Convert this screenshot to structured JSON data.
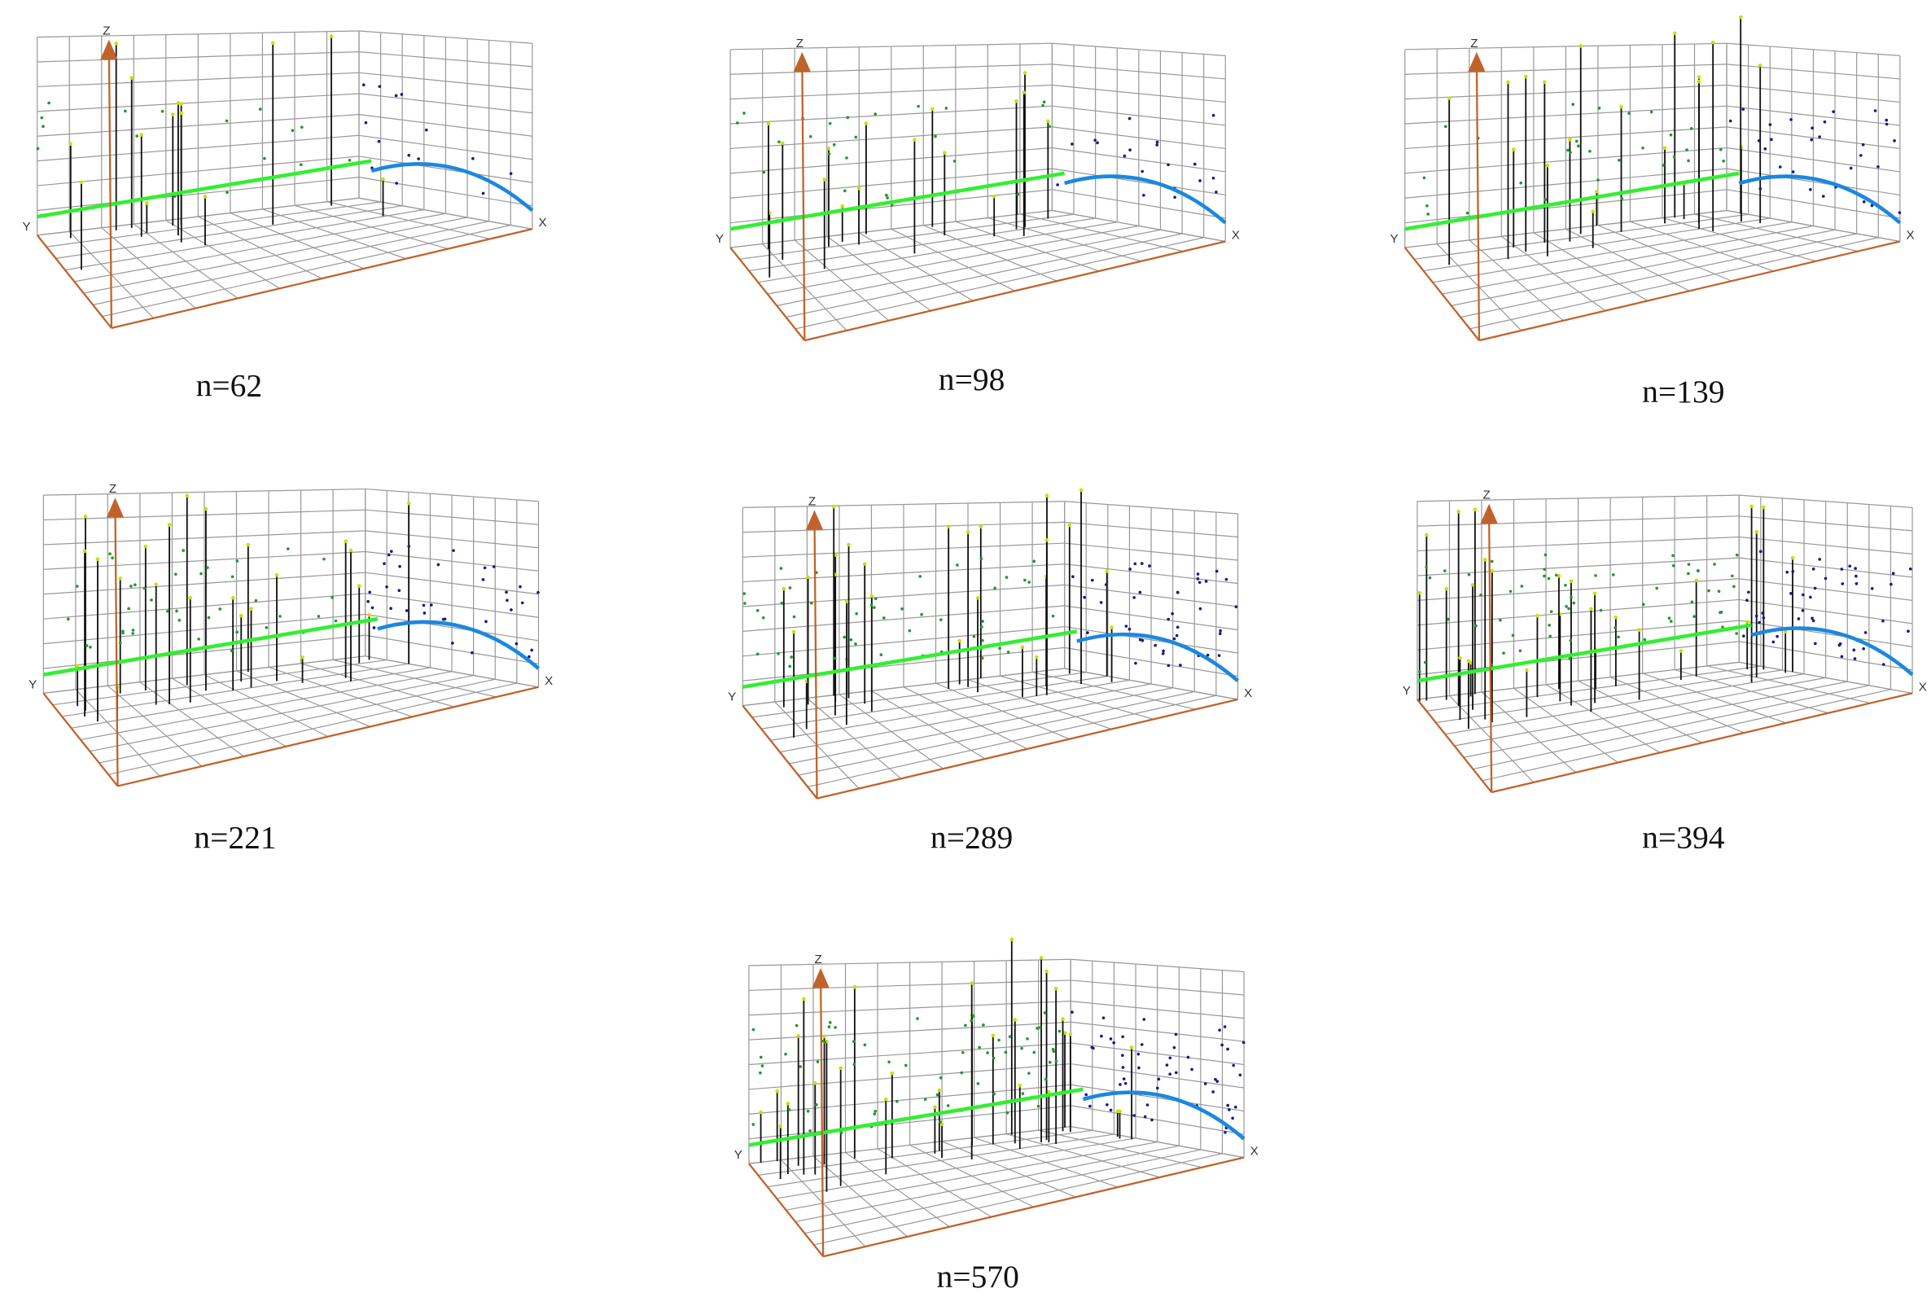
{
  "panels": [
    {
      "caption": "n=62",
      "axis_labels": {
        "x": "X",
        "y": "Y",
        "z": "Z"
      }
    },
    {
      "caption": "n=98",
      "axis_labels": {
        "x": "X",
        "y": "Y",
        "z": "Z"
      }
    },
    {
      "caption": "n=139",
      "axis_labels": {
        "x": "X",
        "y": "Y",
        "z": "Z"
      }
    },
    {
      "caption": "n=221",
      "axis_labels": {
        "x": "X",
        "y": "Y",
        "z": "Z"
      }
    },
    {
      "caption": "n=289",
      "axis_labels": {
        "x": "X",
        "y": "Y",
        "z": "Z"
      }
    },
    {
      "caption": "n=394",
      "axis_labels": {
        "x": "X",
        "y": "Y",
        "z": "Z"
      }
    },
    {
      "caption": "n=570",
      "axis_labels": {
        "x": "X",
        "y": "Y",
        "z": "Z"
      }
    }
  ]
}
